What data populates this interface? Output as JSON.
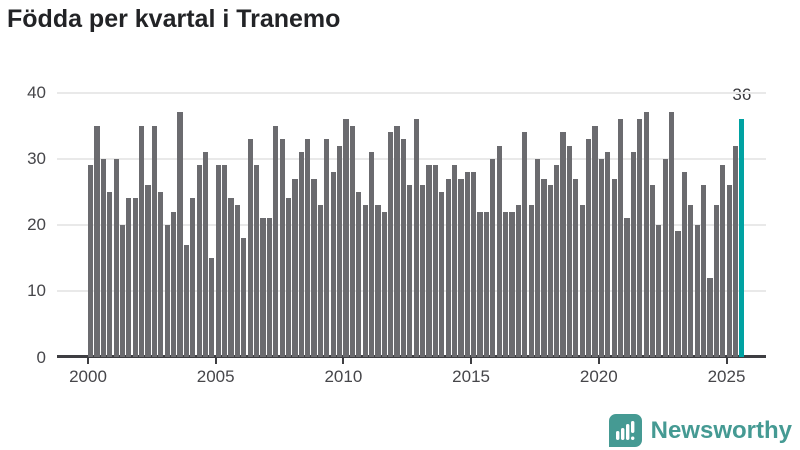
{
  "title": "Födda per kvartal i Tranemo",
  "chart_data": {
    "type": "bar",
    "title": "Födda per kvartal i Tranemo",
    "unit": "födda per kvartal",
    "start_quarter": "2000 Q1",
    "end_quarter": "2025 Q3",
    "values": [
      29,
      35,
      30,
      25,
      30,
      20,
      24,
      24,
      35,
      26,
      35,
      25,
      20,
      22,
      37,
      17,
      24,
      29,
      31,
      15,
      29,
      29,
      24,
      23,
      18,
      33,
      29,
      21,
      21,
      35,
      33,
      24,
      27,
      31,
      33,
      27,
      23,
      33,
      28,
      32,
      36,
      35,
      25,
      23,
      31,
      23,
      22,
      34,
      35,
      33,
      26,
      36,
      26,
      29,
      29,
      25,
      27,
      29,
      27,
      28,
      28,
      22,
      22,
      30,
      32,
      22,
      22,
      23,
      34,
      23,
      30,
      27,
      26,
      29,
      34,
      32,
      27,
      23,
      33,
      35,
      30,
      31,
      27,
      36,
      21,
      31,
      36,
      37,
      26,
      20,
      30,
      37,
      19,
      28,
      23,
      20,
      26,
      12,
      23,
      29,
      26,
      32,
      36
    ],
    "highlight": {
      "index": 102,
      "value": 36,
      "label": "36"
    },
    "ylim": [
      0,
      40
    ],
    "yticks": [
      0,
      10,
      20,
      30,
      40
    ],
    "xticks": [
      2000,
      2005,
      2010,
      2015,
      2020,
      2025
    ],
    "grid": true,
    "legend": "none",
    "bar_color": "#6b6b6f",
    "highlight_color": "#00a2a2"
  },
  "footer": {
    "brand": "Newsworthy",
    "logo_icon": "newsworthy-speech-bubble-bar-chart-icon",
    "brand_color": "#459a93"
  },
  "colors": {
    "background": "#ffffff",
    "title": "#222326",
    "bar": "#6b6b6f",
    "highlight": "#00a2a2",
    "gridline": "#e9e9e9",
    "axis": "#3e3e42",
    "tick_label": "#46464a"
  }
}
